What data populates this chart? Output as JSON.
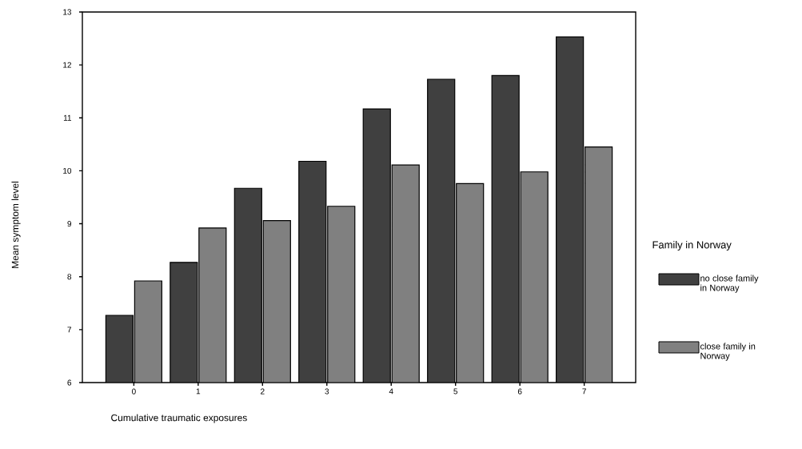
{
  "chart_data": {
    "type": "bar",
    "xlabel": "Cumulative traumatic exposures",
    "ylabel": "Mean symptom level",
    "legend_title": "Family in Norway",
    "legend": "right",
    "categories": [
      "0",
      "1",
      "2",
      "3",
      "4",
      "5",
      "6",
      "7"
    ],
    "series": [
      {
        "name": "no close family in Norway",
        "color": "#404040",
        "values": [
          7.27,
          8.27,
          9.67,
          10.18,
          11.17,
          11.73,
          11.8,
          12.53
        ]
      },
      {
        "name": "close family in Norway",
        "color": "#808080",
        "values": [
          7.92,
          8.92,
          9.06,
          9.33,
          10.11,
          9.76,
          9.98,
          10.45
        ]
      }
    ],
    "ylim": [
      6,
      13
    ],
    "yticks": [
      6,
      7,
      8,
      9,
      10,
      11,
      12,
      13
    ]
  }
}
